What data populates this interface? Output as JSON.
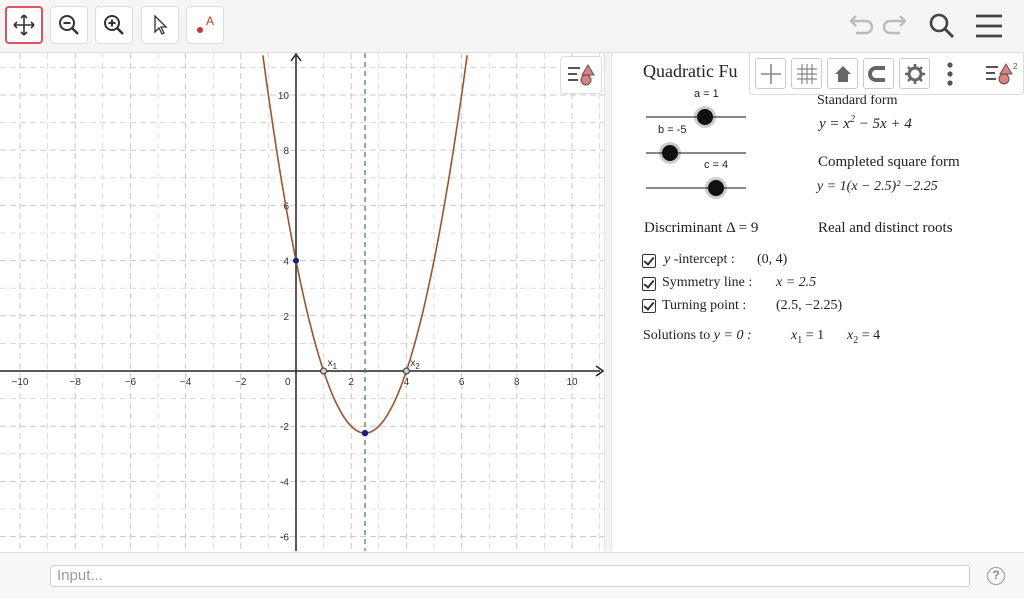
{
  "toolbar": {
    "tools": [
      {
        "name": "move-graphics",
        "icon": "move-arrows-icon"
      },
      {
        "name": "zoom-out",
        "icon": "zoom-out-icon"
      },
      {
        "name": "zoom-in",
        "icon": "zoom-in-icon"
      },
      {
        "name": "select",
        "icon": "pointer-arrow-icon"
      },
      {
        "name": "point",
        "icon": "point-tool-icon",
        "glyph": "A"
      }
    ],
    "right": [
      "undo-icon",
      "redo-icon",
      "search-icon",
      "menu-icon"
    ]
  },
  "graph": {
    "x_ticks": [
      "−10",
      "−8",
      "−6",
      "−4",
      "−2",
      "0",
      "2",
      "4",
      "6",
      "8",
      "10"
    ],
    "y_ticks": [
      "10",
      "8",
      "6",
      "4",
      "2",
      "-2",
      "-4",
      "-6"
    ],
    "points": {
      "root1_label": "x",
      "root1_sub": "1",
      "root2_label": "x",
      "root2_sub": "2"
    },
    "colors": {
      "curve": "#a0522d",
      "symmetry": "#2e8b2e",
      "point": "#1a1a8c"
    }
  },
  "chart_data": {
    "type": "line",
    "function": "y = x^2 - 5x + 4",
    "x": [
      -1,
      0,
      0.5,
      1,
      1.5,
      2,
      2.5,
      3,
      3.5,
      4,
      4.5,
      5,
      5.5,
      6
    ],
    "y": [
      10,
      4,
      1.75,
      0,
      -1.25,
      -2,
      -2.25,
      -2,
      -1.25,
      0,
      1.75,
      4,
      6.75,
      10
    ],
    "xlim": [
      -10.7,
      11
    ],
    "ylim": [
      -6.6,
      11.5
    ],
    "grid": true,
    "special_points": {
      "y_intercept": [
        0,
        4
      ],
      "roots": [
        [
          1,
          0
        ],
        [
          4,
          0
        ]
      ],
      "turning_point": [
        2.5,
        -2.25
      ]
    },
    "symmetry_line_x": 2.5
  },
  "panel": {
    "title": "Quadratic Fu",
    "sliders": [
      {
        "label": "a = 1",
        "value": 1
      },
      {
        "label": "b = -5",
        "value": -5
      },
      {
        "label": "c = 4",
        "value": 4
      }
    ],
    "standard_form_label": "Standard form",
    "standard_form_pre": "y = x",
    "standard_form_post": " − 5x + 4",
    "completed_label": "Completed square form",
    "completed_formula": "y = 1(x − 2.5)² −2.25",
    "discriminant": "Discriminant  Δ = 9",
    "roots_type": "Real and distinct roots",
    "checks": [
      {
        "label_it": "y",
        "label": " -intercept :",
        "value": "(0, 4)"
      },
      {
        "label_it": "",
        "label": "Symmetry line :",
        "value": "x = 2.5"
      },
      {
        "label_it": "",
        "label": "Turning point :",
        "value": "(2.5, −2.25)"
      }
    ],
    "solutions_label": "Solutions to",
    "solutions_eq": "y = 0 :",
    "sol1": "x",
    "sol1_sub": "1",
    "sol1_val": " = 1",
    "sol2": "x",
    "sol2_sub": "2",
    "sol2_val": " = 4"
  },
  "input": {
    "placeholder": "Input..."
  },
  "help": "?"
}
